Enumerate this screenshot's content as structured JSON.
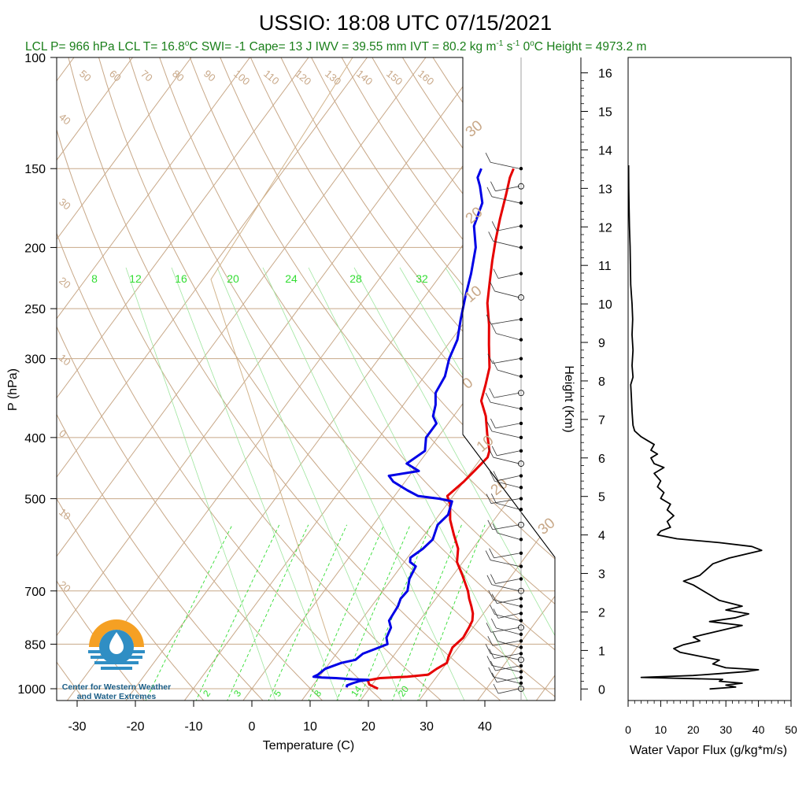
{
  "chart_data": [
    {
      "type": "line",
      "subtype": "skew-t",
      "title": "USSIO: 18:08 UTC 07/15/2021",
      "stats": {
        "lcl_p": "LCL P= 966 hPa",
        "lcl_t": "LCL T= 16.8",
        "lcl_t_unit": "C",
        "swi": "SWI= -1",
        "cape": "Cape= 13 J",
        "iwv": "IWV = 39.55 mm",
        "ivt": "IVT = 80.2 kg m",
        "ivt_exp1": "-1",
        "ivt_mid": " s",
        "ivt_exp2": "-1",
        "zero_height": "0",
        "zero_height_rest": "C Height = 4973.2 m"
      },
      "xlabel": "Temperature (C)",
      "ylabel": "P (hPa)",
      "xlim": [
        -35,
        50
      ],
      "ylim": [
        1050,
        100
      ],
      "y_scale": "log",
      "x_ticks": [
        "-30",
        "-20",
        "-10",
        "0",
        "10",
        "20",
        "30",
        "40"
      ],
      "x_tick_values": [
        -30,
        -20,
        -10,
        0,
        10,
        20,
        30,
        40
      ],
      "y_ticks": [
        "100",
        "150",
        "200",
        "250",
        "300",
        "400",
        "500",
        "700",
        "850",
        "1000"
      ],
      "y_tick_values": [
        100,
        150,
        200,
        250,
        300,
        400,
        500,
        700,
        850,
        1000
      ],
      "dry_adiabat_labels": [
        "50",
        "60",
        "70",
        "80",
        "90",
        "100",
        "110",
        "120",
        "130",
        "140",
        "150",
        "160"
      ],
      "skew_isotherm_labels_left": [
        "40",
        "30",
        "20",
        "10",
        "0",
        "10",
        "20"
      ],
      "skew_isotherm_labels_right": [
        "30",
        "20",
        "10",
        "0",
        "10",
        "20",
        "30"
      ],
      "mixing_ratio_labels_top": [
        "8",
        "12",
        "16",
        "20",
        "24",
        "28",
        "32"
      ],
      "mixing_ratio_labels_bottom": [
        "2",
        "3",
        "5",
        "8",
        "14",
        "20"
      ],
      "colors": {
        "temperature": "#e60000",
        "dewpoint": "#0000e6",
        "isopleth": "#c8a888",
        "mixing_ratio": "#33dd33",
        "stats": "#1a7f1a",
        "logo_orange": "#f5a023",
        "logo_blue": "#2f8ec4",
        "logo_text": "#1b5e87"
      },
      "series": [
        {
          "name": "temperature",
          "points": [
            [
              21.5,
              1000
            ],
            [
              19.5,
              985
            ],
            [
              18.7,
              970
            ],
            [
              20.5,
              962
            ],
            [
              25,
              957
            ],
            [
              28.3,
              950
            ],
            [
              29,
              930
            ],
            [
              30,
              910
            ],
            [
              29.5,
              890
            ],
            [
              29,
              860
            ],
            [
              29.6,
              830
            ],
            [
              29.3,
              800
            ],
            [
              29,
              780
            ],
            [
              28.2,
              760
            ],
            [
              27,
              740
            ],
            [
              25.7,
              720
            ],
            [
              24.5,
              700
            ],
            [
              21.5,
              660
            ],
            [
              19,
              630
            ],
            [
              17.5,
              600
            ],
            [
              15,
              570
            ],
            [
              12.5,
              540
            ],
            [
              10.5,
              510
            ],
            [
              9,
              495
            ],
            [
              10,
              470
            ],
            [
              10.5,
              450
            ],
            [
              11,
              430
            ],
            [
              10.5,
              420
            ],
            [
              8,
              395
            ],
            [
              5.5,
              370
            ],
            [
              2.8,
              350
            ],
            [
              1.5,
              330
            ],
            [
              0,
              310
            ],
            [
              -3,
              285
            ],
            [
              -5.5,
              265
            ],
            [
              -8.5,
              245
            ],
            [
              -11,
              225
            ],
            [
              -13,
              210
            ],
            [
              -15,
              195
            ],
            [
              -17,
              180
            ],
            [
              -19,
              165
            ],
            [
              -20.5,
              155
            ],
            [
              -21,
              150
            ]
          ]
        },
        {
          "name": "dewpoint",
          "points": [
            [
              16,
              995
            ],
            [
              15.8,
              988
            ],
            [
              16.5,
              980
            ],
            [
              17.5,
              972
            ],
            [
              18.8,
              968
            ],
            [
              16,
              966
            ],
            [
              13,
              962
            ],
            [
              10.5,
              960
            ],
            [
              9,
              957
            ],
            [
              9.5,
              950
            ],
            [
              10,
              930
            ],
            [
              12,
              910
            ],
            [
              14,
              900
            ],
            [
              14.5,
              880
            ],
            [
              16,
              865
            ],
            [
              17.5,
              850
            ],
            [
              16.5,
              830
            ],
            [
              16,
              800
            ],
            [
              14.8,
              780
            ],
            [
              14.5,
              740
            ],
            [
              14,
              720
            ],
            [
              14.2,
              700
            ],
            [
              13,
              670
            ],
            [
              12.5,
              640
            ],
            [
              11,
              630
            ],
            [
              10.5,
              620
            ],
            [
              11.5,
              600
            ],
            [
              12,
              580
            ],
            [
              11,
              550
            ],
            [
              11.5,
              530
            ],
            [
              10.5,
              505
            ],
            [
              8,
              500
            ],
            [
              4,
              495
            ],
            [
              1.5,
              485
            ],
            [
              -2,
              470
            ],
            [
              -3.5,
              460
            ],
            [
              1,
              452
            ],
            [
              -2,
              440
            ],
            [
              -0.5,
              420
            ],
            [
              -2,
              400
            ],
            [
              -2,
              380
            ],
            [
              -3.5,
              370
            ],
            [
              -4.5,
              355
            ],
            [
              -6,
              340
            ],
            [
              -6.5,
              320
            ],
            [
              -8,
              300
            ],
            [
              -9,
              280
            ],
            [
              -11,
              260
            ],
            [
              -13,
              240
            ],
            [
              -15,
              220
            ],
            [
              -17.5,
              200
            ],
            [
              -20.5,
              185
            ],
            [
              -22,
              170
            ],
            [
              -24.5,
              160
            ],
            [
              -26,
              155
            ],
            [
              -26.5,
              150
            ]
          ]
        }
      ],
      "wind_barb_pressures": [
        1000,
        980,
        960,
        940,
        920,
        900,
        880,
        860,
        840,
        820,
        800,
        780,
        760,
        740,
        720,
        700,
        670,
        640,
        610,
        580,
        550,
        520,
        500,
        480,
        460,
        440,
        420,
        400,
        380,
        360,
        340,
        320,
        300,
        280,
        260,
        240,
        220,
        200,
        185,
        170,
        160,
        150
      ]
    },
    {
      "type": "line",
      "title": "",
      "xlabel": "Water Vapor Flux (g/kg*m/s)",
      "ylabel": "Height (Km)",
      "xlim": [
        0,
        50
      ],
      "ylim": [
        -0.3,
        16.4
      ],
      "x_ticks": [
        "0",
        "10",
        "20",
        "30",
        "40",
        "50"
      ],
      "x_tick_values": [
        0,
        10,
        20,
        30,
        40,
        50
      ],
      "y_ticks": [
        "0",
        "1",
        "2",
        "3",
        "4",
        "5",
        "6",
        "7",
        "8",
        "9",
        "10",
        "11",
        "12",
        "13",
        "14",
        "15",
        "16"
      ],
      "y_tick_values": [
        0,
        1,
        2,
        3,
        4,
        5,
        6,
        7,
        8,
        9,
        10,
        11,
        12,
        13,
        14,
        15,
        16
      ],
      "series": [
        {
          "name": "water-vapor-flux",
          "points": [
            [
              25,
              0.0
            ],
            [
              33,
              0.05
            ],
            [
              30,
              0.1
            ],
            [
              35,
              0.15
            ],
            [
              28,
              0.2
            ],
            [
              29,
              0.25
            ],
            [
              4,
              0.3
            ],
            [
              20,
              0.35
            ],
            [
              28,
              0.4
            ],
            [
              36,
              0.45
            ],
            [
              40,
              0.5
            ],
            [
              30,
              0.55
            ],
            [
              26,
              0.65
            ],
            [
              28,
              0.75
            ],
            [
              22,
              0.85
            ],
            [
              16,
              0.95
            ],
            [
              14,
              1.05
            ],
            [
              17,
              1.15
            ],
            [
              22,
              1.25
            ],
            [
              20,
              1.35
            ],
            [
              25,
              1.45
            ],
            [
              30,
              1.55
            ],
            [
              35,
              1.65
            ],
            [
              25,
              1.75
            ],
            [
              33,
              1.85
            ],
            [
              37,
              1.95
            ],
            [
              30,
              2.05
            ],
            [
              35,
              2.15
            ],
            [
              28,
              2.3
            ],
            [
              25,
              2.45
            ],
            [
              22,
              2.6
            ],
            [
              20,
              2.7
            ],
            [
              17,
              2.8
            ],
            [
              22,
              2.95
            ],
            [
              24,
              3.1
            ],
            [
              26,
              3.25
            ],
            [
              31,
              3.4
            ],
            [
              36,
              3.5
            ],
            [
              41,
              3.6
            ],
            [
              38,
              3.7
            ],
            [
              28,
              3.8
            ],
            [
              15,
              3.9
            ],
            [
              9,
              4.0
            ],
            [
              10,
              4.1
            ],
            [
              13,
              4.2
            ],
            [
              12,
              4.35
            ],
            [
              14,
              4.5
            ],
            [
              12,
              4.65
            ],
            [
              13,
              4.8
            ],
            [
              10,
              4.95
            ],
            [
              11,
              5.1
            ],
            [
              9,
              5.25
            ],
            [
              10,
              5.4
            ],
            [
              8,
              5.6
            ],
            [
              11,
              5.75
            ],
            [
              8,
              5.85
            ],
            [
              7,
              6.0
            ],
            [
              9,
              6.1
            ],
            [
              7,
              6.2
            ],
            [
              8,
              6.35
            ],
            [
              6,
              6.45
            ],
            [
              4,
              6.55
            ],
            [
              2,
              6.7
            ],
            [
              1.5,
              6.85
            ],
            [
              1.2,
              7.2
            ],
            [
              1,
              7.6
            ],
            [
              0.8,
              7.9
            ],
            [
              1.5,
              8.1
            ],
            [
              1.2,
              8.4
            ],
            [
              1.5,
              8.8
            ],
            [
              1.2,
              9.2
            ],
            [
              1.4,
              9.6
            ],
            [
              1.2,
              10.0
            ],
            [
              0.8,
              10.5
            ],
            [
              0.7,
              11.0
            ],
            [
              0.6,
              11.5
            ],
            [
              0.4,
              12.0
            ],
            [
              0.3,
              12.5
            ],
            [
              0.2,
              13.0
            ],
            [
              0.15,
              13.6
            ]
          ]
        }
      ]
    }
  ],
  "logo": {
    "line1": "Center for Western Weather",
    "line2": "and Water Extremes"
  }
}
